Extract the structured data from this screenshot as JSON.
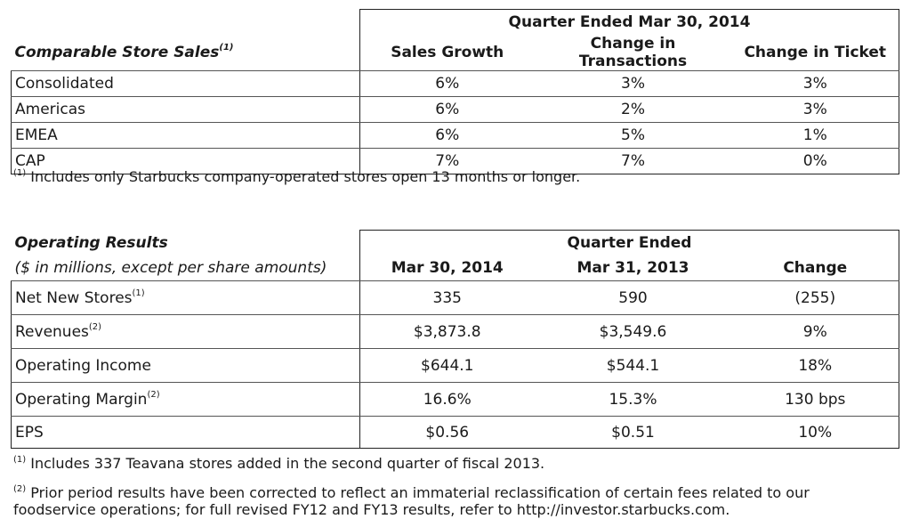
{
  "comparable": {
    "title": "Comparable Store Sales",
    "title_sup": "(1)",
    "period": "Quarter Ended Mar 30, 2014",
    "columns": [
      "Sales Growth",
      "Change in Transactions",
      "Change in Ticket"
    ],
    "rows": [
      {
        "label": "Consolidated",
        "values": [
          "6%",
          "3%",
          "3%"
        ]
      },
      {
        "label": "Americas",
        "values": [
          "6%",
          "2%",
          "3%"
        ]
      },
      {
        "label": "EMEA",
        "values": [
          "6%",
          "5%",
          "1%"
        ]
      },
      {
        "label": "CAP",
        "values": [
          "7%",
          "7%",
          "0%"
        ]
      }
    ],
    "footnote_marker": "(1)",
    "footnote": "Includes only Starbucks company-operated stores open 13 months or longer."
  },
  "operating": {
    "title": "Operating Results",
    "subtitle": "($ in millions, except per share amounts)",
    "period": "Quarter Ended",
    "columns": [
      "Mar 30, 2014",
      "Mar 31, 2013",
      "Change"
    ],
    "rows": [
      {
        "label": "Net New Stores",
        "sup": "(1)",
        "values": [
          "335",
          "590",
          "(255)"
        ]
      },
      {
        "label": "Revenues",
        "sup": "(2)",
        "values": [
          "$3,873.8",
          "$3,549.6",
          "9%"
        ]
      },
      {
        "label": "Operating Income",
        "sup": "",
        "values": [
          "$644.1",
          "$544.1",
          "18%"
        ]
      },
      {
        "label": "Operating Margin",
        "sup": "(2)",
        "values": [
          "16.6%",
          "15.3%",
          "130 bps"
        ]
      },
      {
        "label": "EPS",
        "sup": "",
        "values": [
          "$0.56",
          "$0.51",
          "10%"
        ]
      }
    ],
    "footnote1_marker": "(1)",
    "footnote1": "Includes 337 Teavana stores added in the second quarter of fiscal 2013.",
    "footnote2_marker": "(2)",
    "footnote2_line1": "Prior period results have been corrected to reflect an immaterial reclassification of certain fees related to our",
    "footnote2_line2": "foodservice operations; for full revised FY12 and FY13 results, refer to http://investor.starbucks.com."
  }
}
